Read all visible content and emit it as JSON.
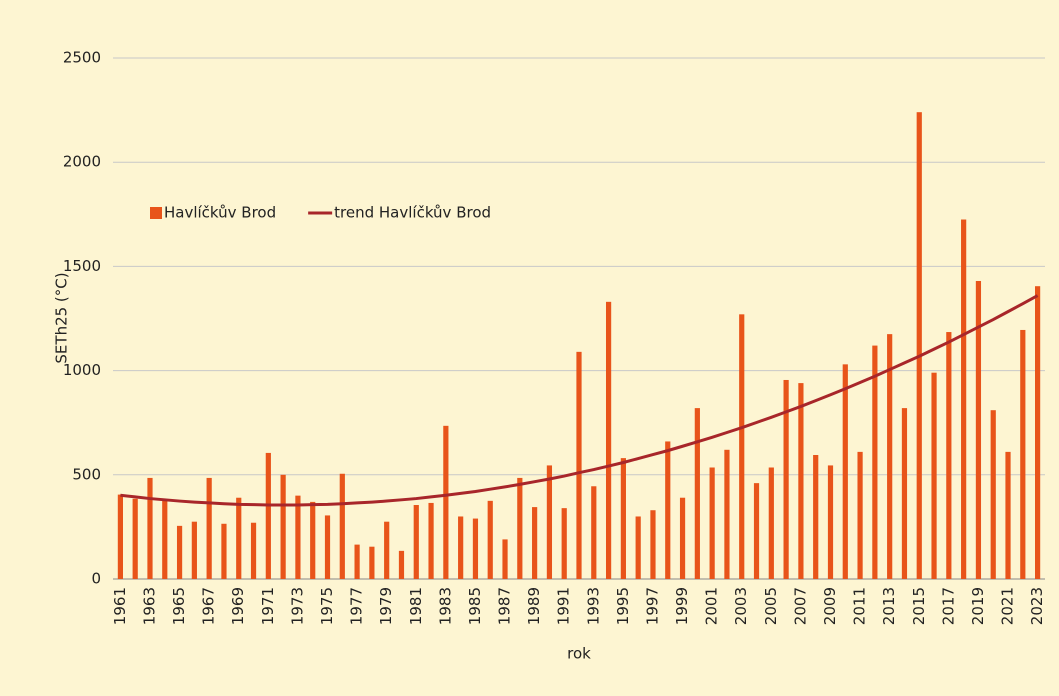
{
  "chart_data": {
    "type": "bar",
    "x_label": "rok",
    "y_label": "SETh25 (°C)",
    "categories": [
      "1961",
      null,
      "1963",
      null,
      "1965",
      null,
      "1967",
      null,
      "1969",
      null,
      "1971",
      null,
      "1973",
      null,
      "1975",
      null,
      "1977",
      null,
      "1979",
      null,
      "1981",
      null,
      "1983",
      null,
      "1985",
      null,
      "1987",
      null,
      "1989",
      null,
      "1991",
      null,
      "1993",
      null,
      "1995",
      null,
      "1997",
      null,
      "1999",
      null,
      "2001",
      null,
      "2003",
      null,
      "2005",
      null,
      "2007",
      null,
      "2009",
      null,
      "2011",
      null,
      "2013",
      null,
      "2015",
      null,
      "2017",
      null,
      "2019",
      null,
      "2021",
      null,
      "2023"
    ],
    "series": [
      {
        "name": "Havlíčkův Brod",
        "type": "bar",
        "color": "#e8541a",
        "values": [
          405,
          385,
          485,
          375,
          255,
          275,
          485,
          265,
          390,
          270,
          605,
          500,
          400,
          370,
          305,
          505,
          165,
          155,
          275,
          135,
          355,
          365,
          735,
          300,
          290,
          375,
          190,
          485,
          345,
          545,
          340,
          1090,
          445,
          1330,
          580,
          300,
          330,
          660,
          390,
          820,
          535,
          620,
          1270,
          460,
          535,
          955,
          940,
          595,
          545,
          1030,
          610,
          1120,
          1175,
          820,
          2240,
          990,
          1185,
          1725,
          1430,
          810,
          610,
          1195,
          1405
        ]
      },
      {
        "name": "trend Havlíčkův Brod",
        "type": "line",
        "color": "#a8262a",
        "values": [
          402,
          394,
          386,
          380,
          374,
          369,
          365,
          361,
          358,
          357,
          355,
          355,
          355,
          357,
          358,
          361,
          365,
          369,
          374,
          380,
          386,
          394,
          402,
          411,
          420,
          431,
          442,
          454,
          467,
          480,
          494,
          510,
          525,
          542,
          559,
          578,
          597,
          616,
          637,
          658,
          680,
          703,
          726,
          751,
          776,
          802,
          828,
          856,
          884,
          913,
          943,
          973,
          1005,
          1037,
          1069,
          1103,
          1137,
          1173,
          1209,
          1245,
          1283,
          1321,
          1360
        ]
      }
    ],
    "ylim": [
      0,
      2500
    ],
    "yticks": [
      0,
      500,
      1000,
      1500,
      2000,
      2500
    ],
    "grid": true,
    "legend": "upper left"
  }
}
